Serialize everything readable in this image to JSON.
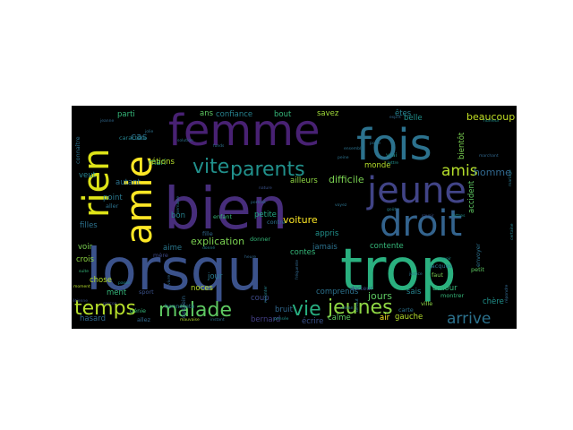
{
  "wordcloud": {
    "background": "#000000",
    "words": [
      {
        "text": "bien",
        "tier": 1,
        "color": "#472d7b",
        "vertical": false
      },
      {
        "text": "lorsqu",
        "tier": 1,
        "color": "#3b528b",
        "vertical": false
      },
      {
        "text": "trop",
        "tier": 1,
        "color": "#2ab07f",
        "vertical": false
      },
      {
        "text": "fois",
        "tier": 2,
        "color": "#2c728e",
        "vertical": false
      },
      {
        "text": "femme",
        "tier": 2,
        "color": "#482173",
        "vertical": false
      },
      {
        "text": "jeune",
        "tier": 3,
        "color": "#414487",
        "vertical": false
      },
      {
        "text": "droit",
        "tier": 3,
        "color": "#33638d",
        "vertical": false
      },
      {
        "text": "rien",
        "tier": 3,
        "color": "#dde318",
        "vertical": true
      },
      {
        "text": "amie",
        "tier": 3,
        "color": "#fde725",
        "vertical": true
      },
      {
        "text": "parents",
        "tier": 4,
        "color": "#21918c",
        "vertical": false
      },
      {
        "text": "vite",
        "tier": 4,
        "color": "#21918c",
        "vertical": false
      },
      {
        "text": "jeunes",
        "tier": 4,
        "color": "#8fd744",
        "vertical": false
      },
      {
        "text": "malade",
        "tier": 4,
        "color": "#5ec962",
        "vertical": false
      },
      {
        "text": "vie",
        "tier": 4,
        "color": "#28ae80",
        "vertical": false
      },
      {
        "text": "temps",
        "tier": 4,
        "color": "#b5de2b",
        "vertical": false
      },
      {
        "text": "arrive",
        "tier": 5,
        "color": "#2c728e",
        "vertical": false
      },
      {
        "text": "amis",
        "tier": 5,
        "color": "#b5de2b",
        "vertical": false
      },
      {
        "text": "beaucoup",
        "tier": 6,
        "color": "#c2df23",
        "vertical": false
      },
      {
        "text": "explication",
        "tier": 6,
        "color": "#7ad151",
        "vertical": false
      },
      {
        "text": "cas",
        "tier": 6,
        "color": "#2c728e",
        "vertical": false
      },
      {
        "text": "homme",
        "tier": 6,
        "color": "#31688e",
        "vertical": false
      },
      {
        "text": "difficile",
        "tier": 6,
        "color": "#7ad151",
        "vertical": false
      },
      {
        "text": "voiture",
        "tier": 6,
        "color": "#fde725",
        "vertical": false
      },
      {
        "text": "jours",
        "tier": 6,
        "color": "#5ec962",
        "vertical": false
      },
      {
        "text": "ailleurs",
        "tier": 7,
        "color": "#8fd744",
        "vertical": false
      },
      {
        "text": "monde",
        "tier": 7,
        "color": "#b5de2b",
        "vertical": false
      },
      {
        "text": "mari",
        "tier": 7,
        "color": "#35b779",
        "vertical": false
      },
      {
        "text": "parti",
        "tier": 7,
        "color": "#35b779",
        "vertical": false
      },
      {
        "text": "savez",
        "tier": 7,
        "color": "#a0da39",
        "vertical": false
      },
      {
        "text": "belle",
        "tier": 7,
        "color": "#21918c",
        "vertical": false
      },
      {
        "text": "confiance",
        "tier": 7,
        "color": "#26828e",
        "vertical": false
      },
      {
        "text": "bout",
        "tier": 7,
        "color": "#35b779",
        "vertical": false
      },
      {
        "text": "filles",
        "tier": 7,
        "color": "#2c728e",
        "vertical": false
      },
      {
        "text": "chose",
        "tier": 7,
        "color": "#b5de2b",
        "vertical": false
      },
      {
        "text": "hasard",
        "tier": 7,
        "color": "#31688e",
        "vertical": false
      },
      {
        "text": "ment",
        "tier": 7,
        "color": "#35b779",
        "vertical": false
      },
      {
        "text": "crois",
        "tier": 7,
        "color": "#8fd744",
        "vertical": false
      },
      {
        "text": "voir",
        "tier": 7,
        "color": "#7ad151",
        "vertical": false
      },
      {
        "text": "bon",
        "tier": 7,
        "color": "#26828e",
        "vertical": false
      },
      {
        "text": "aime",
        "tier": 7,
        "color": "#2a788e",
        "vertical": false
      },
      {
        "text": "coup",
        "tier": 7,
        "color": "#3e4a89",
        "vertical": false
      },
      {
        "text": "noces",
        "tier": 7,
        "color": "#b5de2b",
        "vertical": false
      },
      {
        "text": "jour",
        "tier": 7,
        "color": "#2a788e",
        "vertical": false
      },
      {
        "text": "bernard",
        "tier": 7,
        "color": "#433e85",
        "vertical": false
      },
      {
        "text": "calme",
        "tier": 7,
        "color": "#5ec962",
        "vertical": false
      },
      {
        "text": "écrire",
        "tier": 7,
        "color": "#3b528b",
        "vertical": false
      },
      {
        "text": "gauche",
        "tier": 7,
        "color": "#b5de2b",
        "vertical": false
      },
      {
        "text": "chère",
        "tier": 7,
        "color": "#21918c",
        "vertical": false
      },
      {
        "text": "sais",
        "tier": 7,
        "color": "#26828e",
        "vertical": false
      },
      {
        "text": "contente",
        "tier": 7,
        "color": "#35b779",
        "vertical": false
      },
      {
        "text": "amour",
        "tier": 7,
        "color": "#35b779",
        "vertical": false
      },
      {
        "text": "air",
        "tier": 7,
        "color": "#fde725",
        "vertical": false
      },
      {
        "text": "jamais",
        "tier": 7,
        "color": "#2c728e",
        "vertical": false
      },
      {
        "text": "contes",
        "tier": 7,
        "color": "#35b779",
        "vertical": false
      },
      {
        "text": "comprends",
        "tier": 7,
        "color": "#2c728e",
        "vertical": false
      },
      {
        "text": "appris",
        "tier": 7,
        "color": "#21918c",
        "vertical": false
      },
      {
        "text": "bruit",
        "tier": 7,
        "color": "#31688e",
        "vertical": false
      },
      {
        "text": "petite",
        "tier": 7,
        "color": "#22a884",
        "vertical": false
      },
      {
        "text": "point",
        "tier": 7,
        "color": "#2a788e",
        "vertical": false
      },
      {
        "text": "veut",
        "tier": 7,
        "color": "#26828e",
        "vertical": false
      },
      {
        "text": "autant",
        "tier": 7,
        "color": "#2c728e",
        "vertical": false
      },
      {
        "text": "étions",
        "tier": 7,
        "color": "#b5de2b",
        "vertical": false
      },
      {
        "text": "êtes",
        "tier": 7,
        "color": "#26828e",
        "vertical": false
      },
      {
        "text": "ans",
        "tier": 7,
        "color": "#5ec962",
        "vertical": false
      },
      {
        "text": "caractère",
        "tier": 8,
        "color": "#26828e",
        "vertical": false
      },
      {
        "text": "mère",
        "tier": 8,
        "color": "#3e4a89",
        "vertical": false
      },
      {
        "text": "aller",
        "tier": 8,
        "color": "#2c728e",
        "vertical": false
      },
      {
        "text": "donner",
        "tier": 8,
        "color": "#35b779",
        "vertical": false
      },
      {
        "text": "vrai",
        "tier": 8,
        "color": "#21918c",
        "vertical": false
      },
      {
        "text": "allez",
        "tier": 8,
        "color": "#31688e",
        "vertical": false
      },
      {
        "text": "sport",
        "tier": 8,
        "color": "#3b528b",
        "vertical": false
      },
      {
        "text": "génie",
        "tier": 8,
        "color": "#35b779",
        "vertical": false
      },
      {
        "text": "carte",
        "tier": 8,
        "color": "#2c728e",
        "vertical": false
      },
      {
        "text": "faut",
        "tier": 8,
        "color": "#7ad151",
        "vertical": false
      },
      {
        "text": "petit",
        "tier": 8,
        "color": "#5ec962",
        "vertical": false
      },
      {
        "text": "ville",
        "tier": 8,
        "color": "#8fd744",
        "vertical": false
      },
      {
        "text": "montrer",
        "tier": 8,
        "color": "#35b779",
        "vertical": false
      },
      {
        "text": "docteur",
        "tier": 8,
        "color": "#3e4a89",
        "vertical": false
      },
      {
        "text": "jacques",
        "tier": 8,
        "color": "#2c728e",
        "vertical": false
      },
      {
        "text": "enfant",
        "tier": 8,
        "color": "#35b779",
        "vertical": false
      },
      {
        "text": "contre",
        "tier": 8,
        "color": "#2c728e",
        "vertical": false
      },
      {
        "text": "fille",
        "tier": 8,
        "color": "#31688e",
        "vertical": false
      },
      {
        "text": "honnêteté",
        "tier": 8,
        "color": "#2a788e",
        "vertical": false
      },
      {
        "text": "nature",
        "tier": 9,
        "color": "#3b528b",
        "vertical": false
      },
      {
        "text": "jolie",
        "tier": 9,
        "color": "#2c728e",
        "vertical": false
      },
      {
        "text": "solution",
        "tier": 9,
        "color": "#2c728e",
        "vertical": false
      },
      {
        "text": "ensemble",
        "tier": 9,
        "color": "#2c728e",
        "vertical": false
      },
      {
        "text": "porte",
        "tier": 9,
        "color": "#2c728e",
        "vertical": false
      },
      {
        "text": "lettres",
        "tier": 9,
        "color": "#21918c",
        "vertical": false
      },
      {
        "text": "étienne",
        "tier": 9,
        "color": "#3b528b",
        "vertical": false
      },
      {
        "text": "garçon",
        "tier": 9,
        "color": "#3e4a89",
        "vertical": false
      },
      {
        "text": "mauvaise",
        "tier": 9,
        "color": "#b5de2b",
        "vertical": false
      },
      {
        "text": "instant",
        "tier": 9,
        "color": "#2c728e",
        "vertical": false
      },
      {
        "text": "pensée",
        "tier": 9,
        "color": "#21918c",
        "vertical": false
      },
      {
        "text": "passé",
        "tier": 9,
        "color": "#21918c",
        "vertical": false
      },
      {
        "text": "jeanne",
        "tier": 9,
        "color": "#31688e",
        "vertical": false
      },
      {
        "text": "humeur",
        "tier": 9,
        "color": "#21918c",
        "vertical": false
      },
      {
        "text": "justice",
        "tier": 9,
        "color": "#2c728e",
        "vertical": false
      },
      {
        "text": "lettre",
        "tier": 9,
        "color": "#21918c",
        "vertical": false
      },
      {
        "text": "espoir",
        "tier": 9,
        "color": "#21918c",
        "vertical": false
      },
      {
        "text": "marchant",
        "tier": 9,
        "color": "#31688e",
        "vertical": false
      },
      {
        "text": "portrait",
        "tier": 9,
        "color": "#2c728e",
        "vertical": false
      },
      {
        "text": "moment",
        "tier": 9,
        "color": "#b5de2b",
        "vertical": false
      },
      {
        "text": "donné",
        "tier": 9,
        "color": "#26828e",
        "vertical": false
      },
      {
        "text": "fonds",
        "tier": 9,
        "color": "#2c728e",
        "vertical": false
      },
      {
        "text": "suite",
        "tier": 9,
        "color": "#35b779",
        "vertical": false
      },
      {
        "text": "heure",
        "tier": 9,
        "color": "#31688e",
        "vertical": false
      },
      {
        "text": "roman",
        "tier": 9,
        "color": "#2a788e",
        "vertical": false
      },
      {
        "text": "voyez",
        "tier": 9,
        "color": "#2c728e",
        "vertical": false
      },
      {
        "text": "goût",
        "tier": 9,
        "color": "#26828e",
        "vertical": false
      },
      {
        "text": "peine",
        "tier": 9,
        "color": "#2c728e",
        "vertical": false
      },
      {
        "text": "savoir",
        "tier": 9,
        "color": "#3b528b",
        "vertical": false
      },
      {
        "text": "esprit",
        "tier": 9,
        "color": "#31688e",
        "vertical": false
      },
      {
        "text": "accident",
        "tier": 7,
        "color": "#5ec962",
        "vertical": true
      },
      {
        "text": "bientôt",
        "tier": 7,
        "color": "#7ad151",
        "vertical": true
      },
      {
        "text": "connaître",
        "tier": 8,
        "color": "#2c728e",
        "vertical": true
      },
      {
        "text": "dessein",
        "tier": 8,
        "color": "#31688e",
        "vertical": true
      },
      {
        "text": "envoyer",
        "tier": 8,
        "color": "#2c728e",
        "vertical": true
      },
      {
        "text": "fréquente",
        "tier": 9,
        "color": "#31688e",
        "vertical": true
      },
      {
        "text": "raconter",
        "tier": 9,
        "color": "#26828e",
        "vertical": true
      },
      {
        "text": "mariage",
        "tier": 9,
        "color": "#2a788e",
        "vertical": true
      },
      {
        "text": "certaine",
        "tier": 9,
        "color": "#26828e",
        "vertical": true
      },
      {
        "text": "répondre",
        "tier": 9,
        "color": "#31688e",
        "vertical": true
      },
      {
        "text": "défaut",
        "tier": 9,
        "color": "#2c728e",
        "vertical": true
      },
      {
        "text": "semaine",
        "tier": 9,
        "color": "#2c728e",
        "vertical": true
      },
      {
        "text": "vivre",
        "tier": 9,
        "color": "#31688e",
        "vertical": true
      }
    ]
  }
}
